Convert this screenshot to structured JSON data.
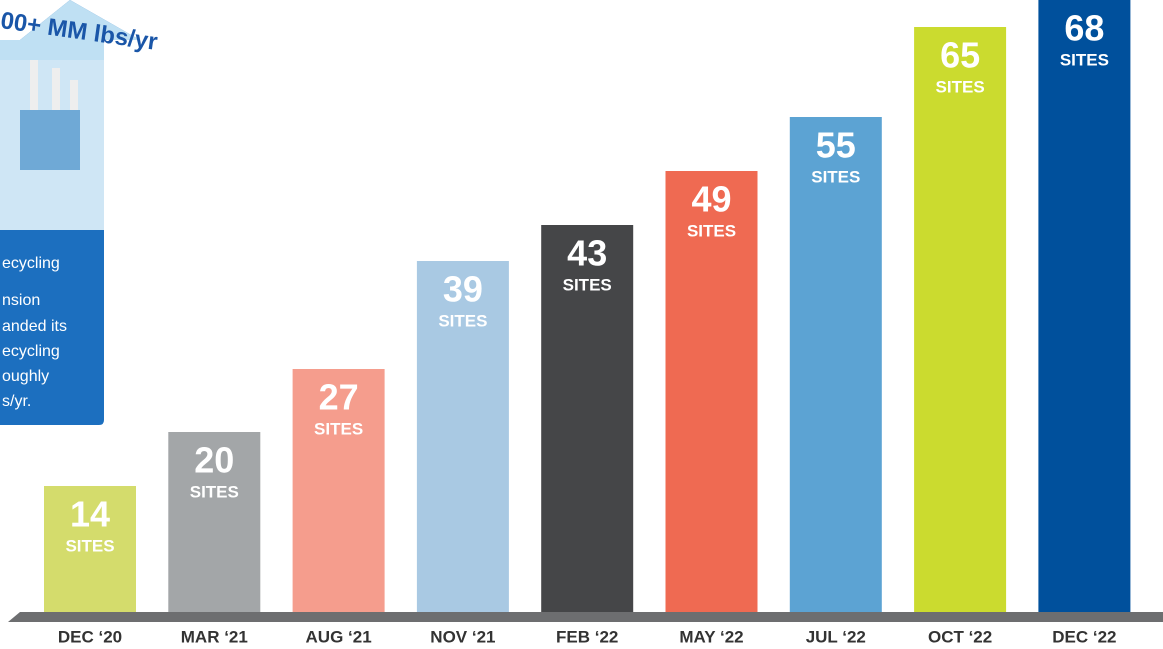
{
  "chart_data": {
    "type": "bar",
    "categories": [
      "DEC ‘20",
      "MAR ‘21",
      "AUG ‘21",
      "NOV ‘21",
      "FEB ‘22",
      "MAY ‘22",
      "JUL ‘22",
      "OCT ‘22",
      "DEC ‘22"
    ],
    "values": [
      14,
      20,
      27,
      39,
      43,
      49,
      55,
      65,
      68
    ],
    "unit_label": "SITES",
    "colors": [
      "#d4dc6c",
      "#a3a6a8",
      "#f59d8d",
      "#a9c9e3",
      "#454648",
      "#ef6a52",
      "#5ca3d3",
      "#cbdb2f",
      "#00509c"
    ]
  },
  "panel": {
    "headline": "00+ MM lbs/yr",
    "title_lines": [
      "ecycling",
      "nsion"
    ],
    "body_lines": [
      "anded its",
      "ecycling",
      "oughly",
      "s/yr."
    ]
  }
}
